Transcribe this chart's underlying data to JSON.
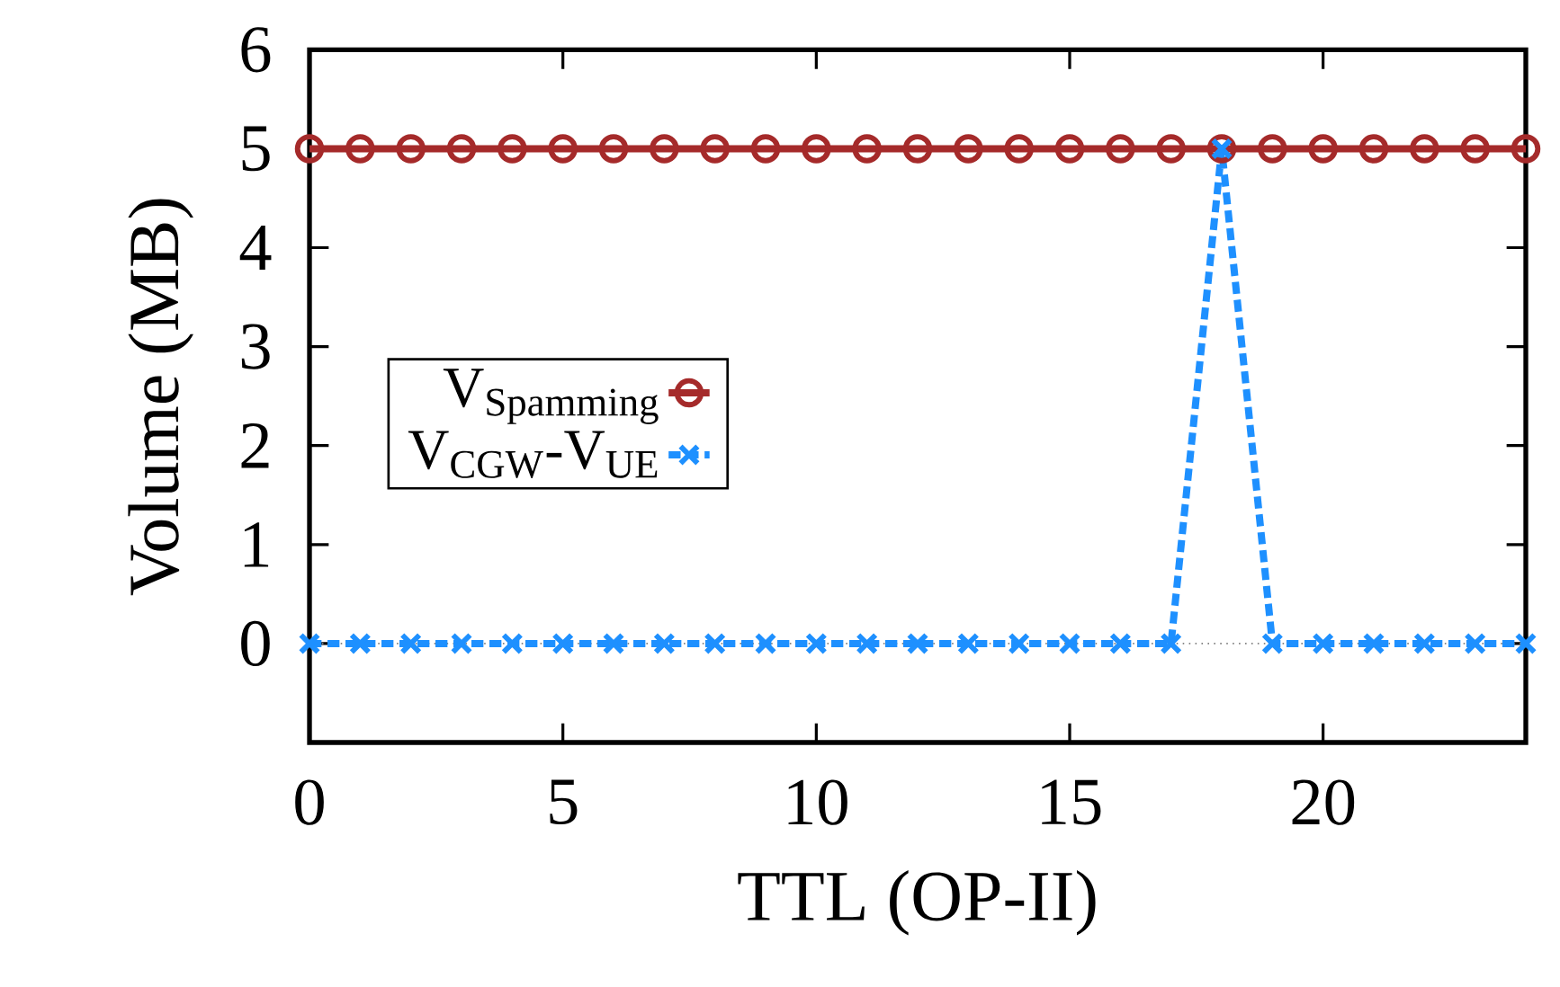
{
  "chart_data": {
    "type": "line",
    "xlabel": "TTL (OP-II)",
    "ylabel": "Volume (MB)",
    "x": [
      0,
      1,
      2,
      3,
      4,
      5,
      6,
      7,
      8,
      9,
      10,
      11,
      12,
      13,
      14,
      15,
      16,
      17,
      18,
      19,
      20,
      21,
      22,
      23,
      24
    ],
    "series": [
      {
        "name": "V$_{Spamming}$",
        "color": "#a52a2a",
        "marker": "circle",
        "line_style": "solid",
        "values": [
          5,
          5,
          5,
          5,
          5,
          5,
          5,
          5,
          5,
          5,
          5,
          5,
          5,
          5,
          5,
          5,
          5,
          5,
          5,
          5,
          5,
          5,
          5,
          5,
          5
        ]
      },
      {
        "name": "V$_{CGW}$-V$_{UE}$",
        "color": "#1e90ff",
        "marker": "cross",
        "line_style": "dashed",
        "values": [
          0,
          0,
          0,
          0,
          0,
          0,
          0,
          0,
          0,
          0,
          0,
          0,
          0,
          0,
          0,
          0,
          0,
          0,
          5,
          0,
          0,
          0,
          0,
          0,
          0
        ]
      }
    ],
    "xlim": [
      0,
      24
    ],
    "ylim": [
      -1,
      6
    ],
    "xticks": [
      0,
      5,
      10,
      15,
      20
    ],
    "yticks": [
      0,
      1,
      2,
      3,
      4,
      5,
      6
    ],
    "ref_lines": [
      {
        "axis": "y",
        "value": 0,
        "color": "#808080",
        "line_style": "dotted"
      }
    ],
    "legend": "left",
    "grid": false
  }
}
